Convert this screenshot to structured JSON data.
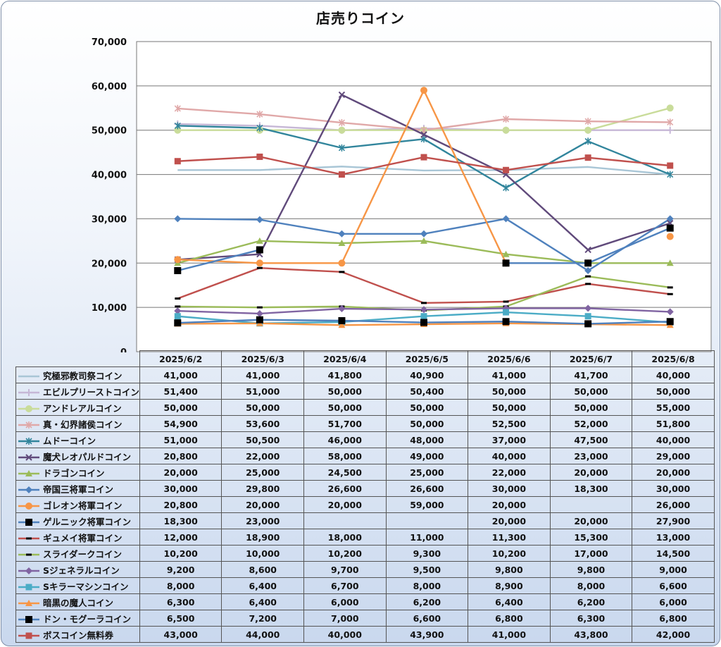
{
  "chart_data": {
    "type": "line",
    "title": "店売りコイン",
    "xlabel": "",
    "ylabel": "",
    "ylim": [
      0,
      70000
    ],
    "yticks": [
      "0",
      "10,000",
      "20,000",
      "30,000",
      "40,000",
      "50,000",
      "60,000",
      "70,000"
    ],
    "grid": true,
    "legend": "data-table",
    "categories": [
      "2025/6/2",
      "2025/6/3",
      "2025/6/4",
      "2025/6/5",
      "2025/6/6",
      "2025/6/7",
      "2025/6/8"
    ],
    "series": [
      {
        "name": "究極邪教司祭コイン",
        "color": "#a9c6d6",
        "marker": "none",
        "values": [
          41000,
          41000,
          41800,
          40900,
          41000,
          41700,
          40000
        ],
        "labels": [
          "41,000",
          "41,000",
          "41,800",
          "40,900",
          "41,000",
          "41,700",
          "40,000"
        ]
      },
      {
        "name": "エビルプリーストコイン",
        "color": "#c6b7d6",
        "marker": "plus",
        "values": [
          51400,
          51000,
          50000,
          50400,
          50000,
          50000,
          50000
        ],
        "labels": [
          "51,400",
          "51,000",
          "50,000",
          "50,400",
          "50,000",
          "50,000",
          "50,000"
        ]
      },
      {
        "name": "アンドレアルコイン",
        "color": "#c9dc9a",
        "marker": "circle",
        "values": [
          50000,
          50000,
          50000,
          50000,
          50000,
          50000,
          55000
        ],
        "labels": [
          "50,000",
          "50,000",
          "50,000",
          "50,000",
          "50,000",
          "50,000",
          "55,000"
        ]
      },
      {
        "name": "真・幻界諸侯コイン",
        "color": "#e0a8a8",
        "marker": "star",
        "values": [
          54900,
          53600,
          51700,
          50000,
          52500,
          52000,
          51800
        ],
        "labels": [
          "54,900",
          "53,600",
          "51,700",
          "50,000",
          "52,500",
          "52,000",
          "51,800"
        ]
      },
      {
        "name": "ムドーコイン",
        "color": "#31859c",
        "marker": "star",
        "values": [
          51000,
          50500,
          46000,
          48000,
          37000,
          47500,
          40000
        ],
        "labels": [
          "51,000",
          "50,500",
          "46,000",
          "48,000",
          "37,000",
          "47,500",
          "40,000"
        ]
      },
      {
        "name": "魔犬レオパルドコイン",
        "color": "#604a7b",
        "marker": "x",
        "values": [
          20800,
          22000,
          58000,
          49000,
          40000,
          23000,
          29000
        ],
        "labels": [
          "20,800",
          "22,000",
          "58,000",
          "49,000",
          "40,000",
          "23,000",
          "29,000"
        ]
      },
      {
        "name": "ドラゴンコイン",
        "color": "#9bbb59",
        "marker": "triangle",
        "values": [
          20000,
          25000,
          24500,
          25000,
          22000,
          20000,
          20000
        ],
        "labels": [
          "20,000",
          "25,000",
          "24,500",
          "25,000",
          "22,000",
          "20,000",
          "20,000"
        ]
      },
      {
        "name": "帝国三将軍コイン",
        "color": "#4f81bd",
        "marker": "diamond",
        "values": [
          30000,
          29800,
          26600,
          26600,
          30000,
          18300,
          30000
        ],
        "labels": [
          "30,000",
          "29,800",
          "26,600",
          "26,600",
          "30,000",
          "18,300",
          "30,000"
        ]
      },
      {
        "name": "ゴレオン将軍コイン",
        "color": "#f79646",
        "marker": "circle",
        "values": [
          20800,
          20000,
          20000,
          59000,
          20000,
          null,
          26000
        ],
        "labels": [
          "20,800",
          "20,000",
          "20,000",
          "59,000",
          "20,000",
          "",
          "26,000"
        ]
      },
      {
        "name": "ゲルニック将軍コイン",
        "color": "#4f81bd",
        "marker": "square-black",
        "values": [
          18300,
          23000,
          null,
          null,
          20000,
          20000,
          27900
        ],
        "labels": [
          "18,300",
          "23,000",
          "",
          "",
          "20,000",
          "20,000",
          "27,900"
        ]
      },
      {
        "name": "ギュメイ将軍コイン",
        "color": "#c0504d",
        "marker": "dash-black",
        "values": [
          12000,
          18900,
          18000,
          11000,
          11300,
          15300,
          13000
        ],
        "labels": [
          "12,000",
          "18,900",
          "18,000",
          "11,000",
          "11,300",
          "15,300",
          "13,000"
        ]
      },
      {
        "name": "スライダークコイン",
        "color": "#9bbb59",
        "marker": "dash-black",
        "values": [
          10200,
          10000,
          10200,
          9300,
          10200,
          17000,
          14500
        ],
        "labels": [
          "10,200",
          "10,000",
          "10,200",
          "9,300",
          "10,200",
          "17,000",
          "14,500"
        ]
      },
      {
        "name": "Sジェネラルコイン",
        "color": "#8064a2",
        "marker": "diamond",
        "values": [
          9200,
          8600,
          9700,
          9500,
          9800,
          9800,
          9000
        ],
        "labels": [
          "9,200",
          "8,600",
          "9,700",
          "9,500",
          "9,800",
          "9,800",
          "9,000"
        ]
      },
      {
        "name": "Sキラーマシンコイン",
        "color": "#4bacc6",
        "marker": "square",
        "values": [
          8000,
          6400,
          6700,
          8000,
          8900,
          8000,
          6600
        ],
        "labels": [
          "8,000",
          "6,400",
          "6,700",
          "8,000",
          "8,900",
          "8,000",
          "6,600"
        ]
      },
      {
        "name": "暗黒の魔人コイン",
        "color": "#f79646",
        "marker": "triangle",
        "values": [
          6300,
          6400,
          6000,
          6200,
          6400,
          6200,
          6000
        ],
        "labels": [
          "6,300",
          "6,400",
          "6,000",
          "6,200",
          "6,400",
          "6,200",
          "6,000"
        ]
      },
      {
        "name": "ドン・モグーラコイン",
        "color": "#4f81bd",
        "marker": "square-black",
        "values": [
          6500,
          7200,
          7000,
          6600,
          6800,
          6300,
          6800
        ],
        "labels": [
          "6,500",
          "7,200",
          "7,000",
          "6,600",
          "6,800",
          "6,300",
          "6,800"
        ]
      },
      {
        "name": "ボスコイン無料券",
        "color": "#c0504d",
        "marker": "square",
        "values": [
          43000,
          44000,
          40000,
          43900,
          41000,
          43800,
          42000
        ],
        "labels": [
          "43,000",
          "44,000",
          "40,000",
          "43,900",
          "41,000",
          "43,800",
          "42,000"
        ]
      }
    ]
  }
}
